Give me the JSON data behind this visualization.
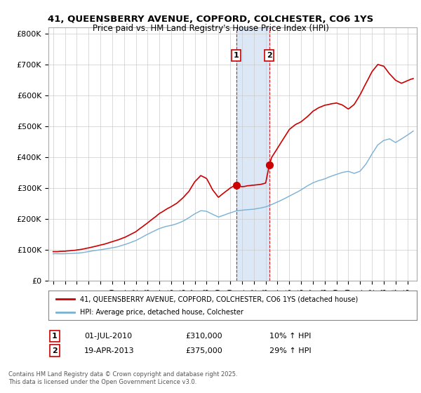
{
  "title1": "41, QUEENSBERRY AVENUE, COPFORD, COLCHESTER, CO6 1YS",
  "title2": "Price paid vs. HM Land Registry's House Price Index (HPI)",
  "ylabel_ticks": [
    "£0",
    "£100K",
    "£200K",
    "£300K",
    "£400K",
    "£500K",
    "£600K",
    "£700K",
    "£800K"
  ],
  "ytick_values": [
    0,
    100000,
    200000,
    300000,
    400000,
    500000,
    600000,
    700000,
    800000
  ],
  "ylim": [
    0,
    820000
  ],
  "xlim_start": 1994.6,
  "xlim_end": 2025.8,
  "transaction1_date": 2010.5,
  "transaction1_price": 310000,
  "transaction2_date": 2013.3,
  "transaction2_price": 375000,
  "shade_color": "#dce8f5",
  "legend_line1": "41, QUEENSBERRY AVENUE, COPFORD, COLCHESTER, CO6 1YS (detached house)",
  "legend_line2": "HPI: Average price, detached house, Colchester",
  "ann1_date": "01-JUL-2010",
  "ann1_price": "£310,000",
  "ann1_hpi": "10% ↑ HPI",
  "ann2_date": "19-APR-2013",
  "ann2_price": "£375,000",
  "ann2_hpi": "29% ↑ HPI",
  "footer": "Contains HM Land Registry data © Crown copyright and database right 2025.\nThis data is licensed under the Open Government Licence v3.0.",
  "line_color_red": "#cc0000",
  "line_color_blue": "#7ab0d4",
  "background_color": "#ffffff",
  "hpi_anchors_x": [
    1995.0,
    1995.5,
    1996.0,
    1996.5,
    1997.0,
    1997.5,
    1998.0,
    1998.5,
    1999.0,
    1999.5,
    2000.0,
    2000.5,
    2001.0,
    2001.5,
    2002.0,
    2002.5,
    2003.0,
    2003.5,
    2004.0,
    2004.5,
    2005.0,
    2005.5,
    2006.0,
    2006.5,
    2007.0,
    2007.5,
    2008.0,
    2008.5,
    2009.0,
    2009.5,
    2010.0,
    2010.5,
    2011.0,
    2011.5,
    2012.0,
    2012.5,
    2013.0,
    2013.5,
    2014.0,
    2014.5,
    2015.0,
    2015.5,
    2016.0,
    2016.5,
    2017.0,
    2017.5,
    2018.0,
    2018.5,
    2019.0,
    2019.5,
    2020.0,
    2020.5,
    2021.0,
    2021.5,
    2022.0,
    2022.5,
    2023.0,
    2023.5,
    2024.0,
    2024.5,
    2025.0,
    2025.5
  ],
  "hpi_anchors_y": [
    88000,
    88500,
    89000,
    90000,
    91000,
    93000,
    96000,
    99000,
    102000,
    105000,
    108000,
    112000,
    118000,
    124000,
    132000,
    142000,
    153000,
    163000,
    172000,
    178000,
    182000,
    188000,
    196000,
    208000,
    220000,
    230000,
    228000,
    218000,
    208000,
    215000,
    222000,
    228000,
    230000,
    232000,
    233000,
    236000,
    240000,
    248000,
    256000,
    265000,
    275000,
    285000,
    296000,
    308000,
    318000,
    325000,
    330000,
    338000,
    345000,
    352000,
    355000,
    348000,
    355000,
    378000,
    410000,
    440000,
    455000,
    460000,
    448000,
    460000,
    472000,
    485000
  ],
  "prop_anchors_x": [
    1995.0,
    1995.5,
    1996.0,
    1996.5,
    1997.0,
    1997.5,
    1998.0,
    1998.5,
    1999.0,
    1999.5,
    2000.0,
    2000.5,
    2001.0,
    2001.5,
    2002.0,
    2002.5,
    2003.0,
    2003.5,
    2004.0,
    2004.5,
    2005.0,
    2005.5,
    2006.0,
    2006.5,
    2007.0,
    2007.5,
    2008.0,
    2008.5,
    2009.0,
    2009.5,
    2010.0,
    2010.5,
    2011.0,
    2011.5,
    2012.0,
    2012.5,
    2013.0,
    2013.3,
    2013.5,
    2014.0,
    2014.5,
    2015.0,
    2015.5,
    2016.0,
    2016.5,
    2017.0,
    2017.5,
    2018.0,
    2018.5,
    2019.0,
    2019.5,
    2020.0,
    2020.5,
    2021.0,
    2021.5,
    2022.0,
    2022.5,
    2023.0,
    2023.5,
    2024.0,
    2024.5,
    2025.0,
    2025.5
  ],
  "prop_anchors_y": [
    95000,
    96000,
    97000,
    99000,
    101000,
    104000,
    108000,
    112000,
    117000,
    122000,
    127000,
    133000,
    141000,
    150000,
    160000,
    174000,
    188000,
    203000,
    218000,
    230000,
    240000,
    252000,
    268000,
    288000,
    320000,
    340000,
    330000,
    295000,
    270000,
    285000,
    300000,
    310000,
    305000,
    308000,
    310000,
    312000,
    318000,
    375000,
    400000,
    430000,
    460000,
    490000,
    505000,
    515000,
    530000,
    548000,
    560000,
    568000,
    572000,
    575000,
    568000,
    555000,
    570000,
    600000,
    638000,
    675000,
    700000,
    695000,
    670000,
    650000,
    640000,
    648000,
    655000
  ]
}
